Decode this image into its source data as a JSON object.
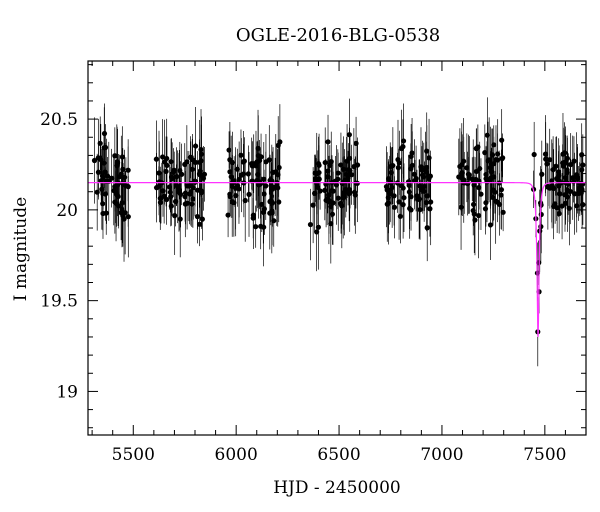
{
  "chart_data": {
    "type": "scatter",
    "title": "OGLE-2016-BLG-0538",
    "xlabel": "HJD - 2450000",
    "ylabel": "I magnitude",
    "xlim": [
      5280,
      7700
    ],
    "ylim": [
      20.82,
      18.76
    ],
    "y_axis_inverted": true,
    "grid": false,
    "x_ticks": [
      "5500",
      "6000",
      "6500",
      "7000",
      "7500"
    ],
    "y_ticks": [
      "19",
      "19.5",
      "20",
      "20.5"
    ],
    "series": [
      {
        "style": "points with error bars",
        "color": "#000000",
        "season_ranges": [
          [
            5310,
            5480
          ],
          [
            5610,
            5850
          ],
          [
            5960,
            6220
          ],
          [
            6360,
            6590
          ],
          [
            6730,
            6950
          ],
          [
            7080,
            7300
          ],
          [
            7440,
            7690
          ]
        ],
        "baseline_magnitude": 20.15,
        "typical_error": 0.17
      },
      {
        "style": "line",
        "color": "#ff33ff",
        "model": "microlensing fit",
        "baseline_magnitude": 20.15,
        "peak_time": 7467,
        "peak_magnitude": 19.3
      }
    ]
  }
}
